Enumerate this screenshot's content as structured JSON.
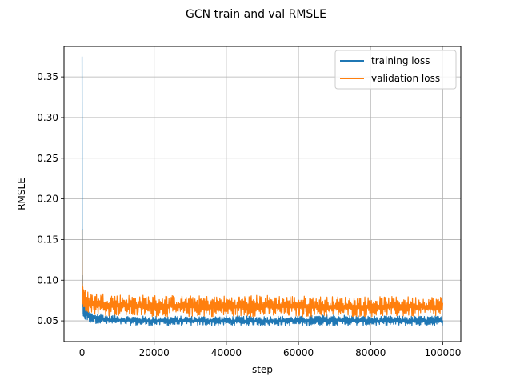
{
  "chart_data": {
    "type": "line",
    "title": "GCN train and val RMSLE",
    "xlabel": "step",
    "ylabel": "RMSLE",
    "xlim": [
      -5000,
      105000
    ],
    "ylim": [
      0.0245,
      0.3875
    ],
    "x_ticks": [
      0,
      20000,
      40000,
      60000,
      80000,
      100000
    ],
    "y_ticks": [
      0.05,
      0.1,
      0.15,
      0.2,
      0.25,
      0.3,
      0.35
    ],
    "x_tick_labels": [
      "0",
      "20000",
      "40000",
      "60000",
      "80000",
      "100000"
    ],
    "y_tick_labels": [
      "0.05",
      "0.10",
      "0.15",
      "0.20",
      "0.25",
      "0.30",
      "0.35"
    ],
    "grid": true,
    "legend_position": "upper right",
    "series": [
      {
        "name": "training loss",
        "color": "#1f77b4",
        "x": [
          0,
          100,
          300,
          600,
          1000,
          2000,
          3000,
          5000,
          7000,
          10000,
          15000,
          20000,
          30000,
          40000,
          50000,
          60000,
          70000,
          80000,
          90000,
          100000
        ],
        "y_low": [
          0.055,
          0.058,
          0.055,
          0.052,
          0.05,
          0.048,
          0.047,
          0.046,
          0.045,
          0.045,
          0.044,
          0.044,
          0.044,
          0.044,
          0.044,
          0.044,
          0.044,
          0.044,
          0.044,
          0.044
        ],
        "y_high": [
          0.375,
          0.12,
          0.075,
          0.072,
          0.068,
          0.062,
          0.06,
          0.06,
          0.058,
          0.057,
          0.056,
          0.056,
          0.056,
          0.056,
          0.056,
          0.056,
          0.058,
          0.056,
          0.056,
          0.056
        ]
      },
      {
        "name": "validation loss",
        "color": "#ff7f0e",
        "x": [
          0,
          100,
          300,
          600,
          1000,
          2000,
          3000,
          5000,
          7000,
          10000,
          15000,
          20000,
          30000,
          40000,
          50000,
          60000,
          70000,
          80000,
          90000,
          100000
        ],
        "y_low": [
          0.075,
          0.075,
          0.068,
          0.065,
          0.062,
          0.06,
          0.058,
          0.057,
          0.056,
          0.056,
          0.055,
          0.055,
          0.055,
          0.055,
          0.055,
          0.055,
          0.055,
          0.055,
          0.055,
          0.055
        ],
        "y_high": [
          0.162,
          0.095,
          0.092,
          0.09,
          0.088,
          0.086,
          0.085,
          0.085,
          0.084,
          0.083,
          0.082,
          0.082,
          0.081,
          0.081,
          0.082,
          0.081,
          0.08,
          0.08,
          0.08,
          0.08
        ]
      }
    ]
  }
}
